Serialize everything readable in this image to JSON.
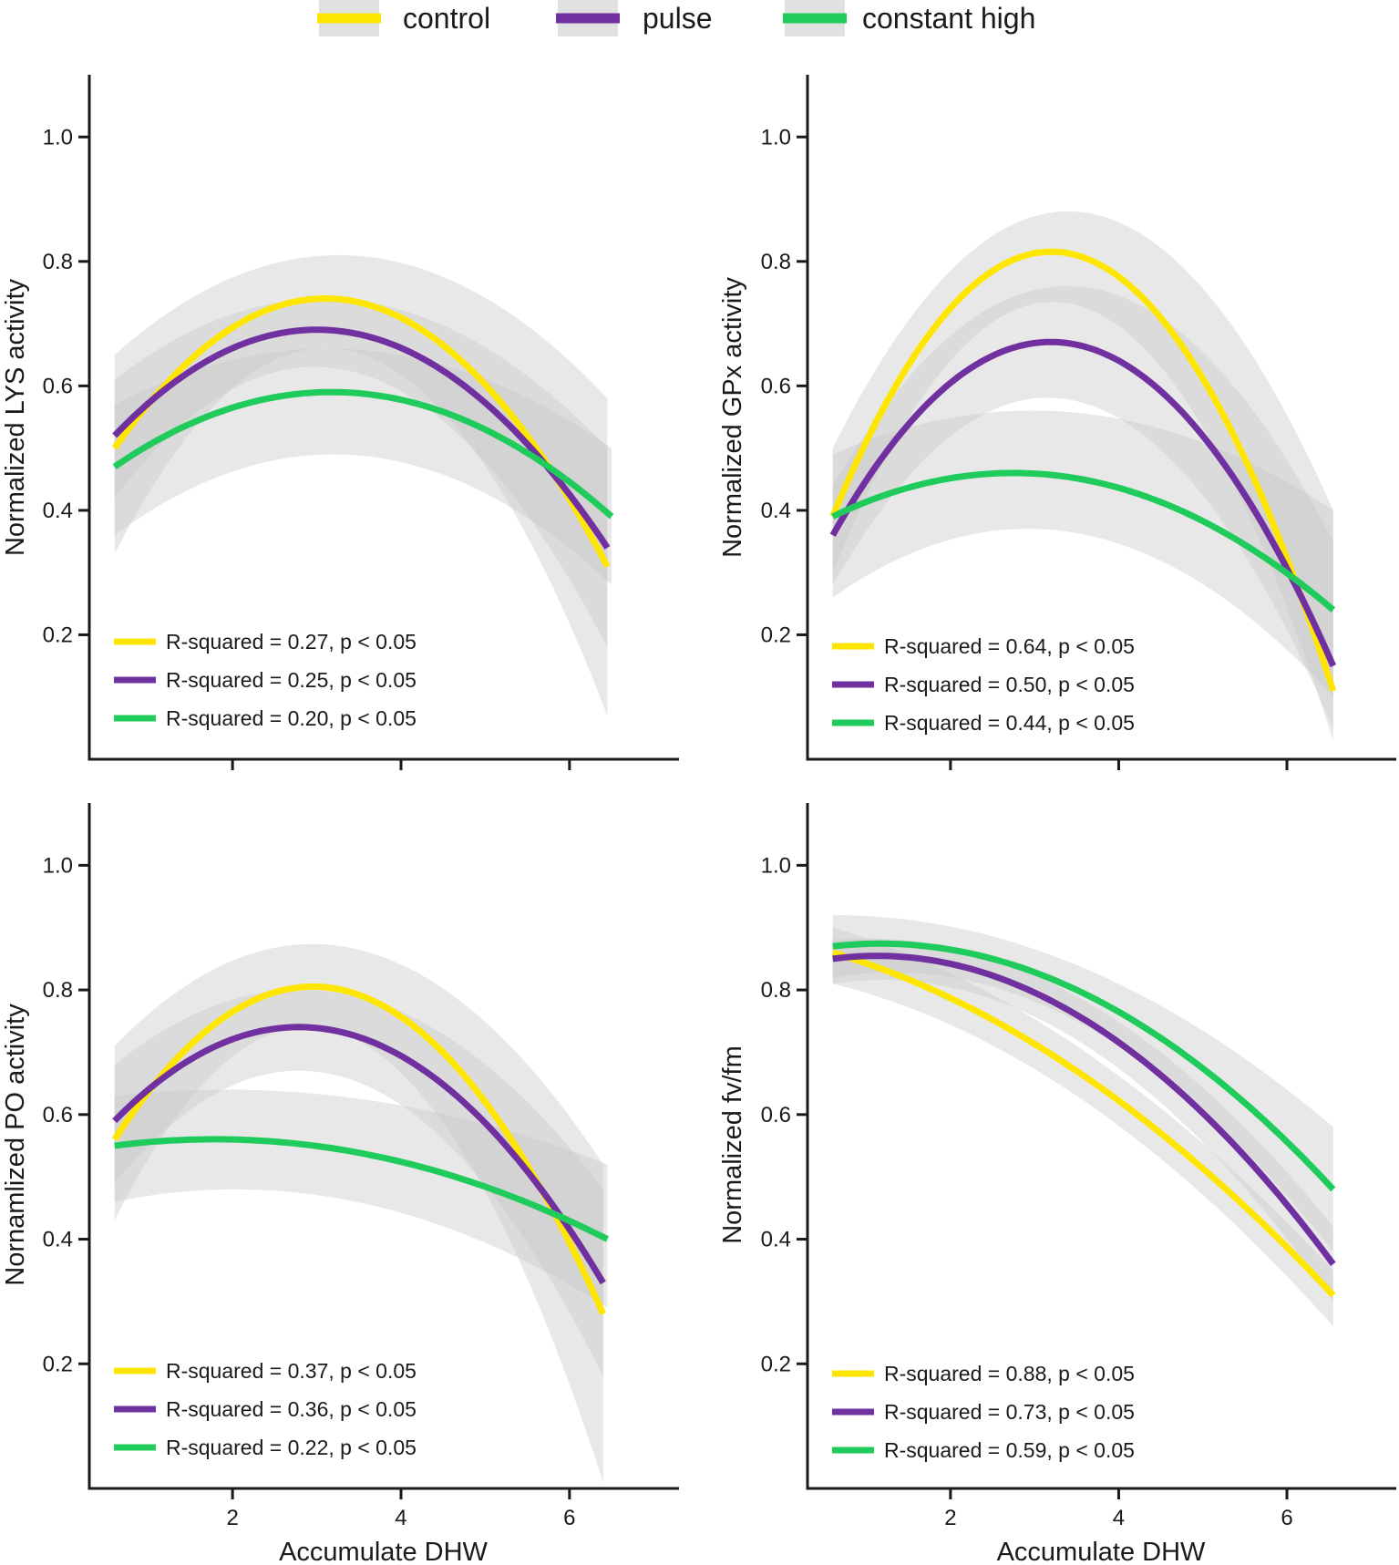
{
  "colors": {
    "control": "#FFE600",
    "pulse": "#7030A0",
    "constant_high": "#1FCB5A",
    "band": "#C8C8C8",
    "axis": "#1a1a1a"
  },
  "legend": [
    {
      "key": "control",
      "label": "control"
    },
    {
      "key": "pulse",
      "label": "pulse"
    },
    {
      "key": "constant_high",
      "label": "constant high"
    }
  ],
  "chart_data": [
    {
      "type": "line",
      "id": "lys",
      "ylabel": "Normalized LYS activity",
      "xlabel": "",
      "show_x_tick_labels": false,
      "xlim": [
        0.3,
        7.3
      ],
      "ylim": [
        0.0,
        1.1
      ],
      "xticks": [
        2,
        4,
        6
      ],
      "yticks": [
        0.2,
        0.4,
        0.6,
        0.8,
        1.0
      ],
      "ytick_labels": [
        "0.2",
        "0.4",
        "0.6",
        "0.8",
        "1.0"
      ],
      "series": [
        {
          "key": "control",
          "x": [
            0.6,
            3.2,
            6.45
          ],
          "y": [
            0.5,
            0.74,
            0.31
          ],
          "band_x": [
            0.6,
            3.2,
            6.45
          ],
          "band_upper": [
            0.65,
            0.81,
            0.58
          ],
          "band_lower": [
            0.33,
            0.66,
            0.07
          ],
          "stat": "R-squared = 0.27, p < 0.05"
        },
        {
          "key": "pulse",
          "x": [
            0.6,
            3.1,
            6.45
          ],
          "y": [
            0.52,
            0.69,
            0.34
          ],
          "band_x": [
            0.6,
            3.1,
            6.45
          ],
          "band_upper": [
            0.61,
            0.74,
            0.5
          ],
          "band_lower": [
            0.42,
            0.63,
            0.18
          ],
          "stat": "R-squared = 0.25, p < 0.05"
        },
        {
          "key": "constant_high",
          "x": [
            0.6,
            3.2,
            6.5
          ],
          "y": [
            0.47,
            0.59,
            0.39
          ],
          "band_x": [
            0.6,
            3.2,
            6.5
          ],
          "band_upper": [
            0.57,
            0.66,
            0.5
          ],
          "band_lower": [
            0.36,
            0.49,
            0.28
          ],
          "stat": "R-squared = 0.20, p < 0.05"
        }
      ]
    },
    {
      "type": "line",
      "id": "gpx",
      "ylabel": "Normalized GPx activity",
      "xlabel": "",
      "show_x_tick_labels": false,
      "xlim": [
        0.3,
        7.3
      ],
      "ylim": [
        0.0,
        1.1
      ],
      "xticks": [
        2,
        4,
        6
      ],
      "yticks": [
        0.2,
        0.4,
        0.6,
        0.8,
        1.0
      ],
      "ytick_labels": [
        "0.2",
        "0.4",
        "0.6",
        "0.8",
        "1.0"
      ],
      "series": [
        {
          "key": "control",
          "x": [
            0.6,
            3.5,
            6.55
          ],
          "y": [
            0.39,
            0.81,
            0.11
          ],
          "band_x": [
            0.6,
            3.5,
            6.55
          ],
          "band_upper": [
            0.5,
            0.88,
            0.4
          ],
          "band_lower": [
            0.3,
            0.73,
            0.03
          ],
          "stat": "R-squared = 0.64, p < 0.05"
        },
        {
          "key": "pulse",
          "x": [
            0.6,
            3.3,
            6.55
          ],
          "y": [
            0.36,
            0.67,
            0.15
          ],
          "band_x": [
            0.6,
            3.3,
            6.55
          ],
          "band_upper": [
            0.44,
            0.76,
            0.35
          ],
          "band_lower": [
            0.28,
            0.58,
            0.05
          ],
          "stat": "R-squared = 0.50, p < 0.05"
        },
        {
          "key": "constant_high",
          "x": [
            0.6,
            2.8,
            6.55
          ],
          "y": [
            0.39,
            0.46,
            0.24
          ],
          "band_x": [
            0.6,
            2.8,
            6.55
          ],
          "band_upper": [
            0.49,
            0.56,
            0.4
          ],
          "band_lower": [
            0.26,
            0.37,
            0.1
          ],
          "stat": "R-squared = 0.44, p < 0.05"
        }
      ]
    },
    {
      "type": "line",
      "id": "po",
      "ylabel": "Nornamlized PO activity",
      "xlabel": "Accumulate DHW",
      "show_x_tick_labels": true,
      "xlim": [
        0.3,
        7.3
      ],
      "ylim": [
        0.0,
        1.1
      ],
      "xticks": [
        2,
        4,
        6
      ],
      "xtick_labels": [
        "2",
        "4",
        "6"
      ],
      "yticks": [
        0.2,
        0.4,
        0.6,
        0.8,
        1.0
      ],
      "ytick_labels": [
        "0.2",
        "0.4",
        "0.6",
        "0.8",
        "1.0"
      ],
      "series": [
        {
          "key": "control",
          "x": [
            0.6,
            3.3,
            6.4
          ],
          "y": [
            0.56,
            0.8,
            0.28
          ],
          "band_x": [
            0.6,
            3.3,
            6.4
          ],
          "band_upper": [
            0.71,
            0.87,
            0.52
          ],
          "band_lower": [
            0.43,
            0.73,
            0.01
          ],
          "stat": "R-squared = 0.37, p < 0.05"
        },
        {
          "key": "pulse",
          "x": [
            0.6,
            2.9,
            6.4
          ],
          "y": [
            0.59,
            0.74,
            0.33
          ],
          "band_x": [
            0.6,
            2.9,
            6.4
          ],
          "band_upper": [
            0.68,
            0.8,
            0.48
          ],
          "band_lower": [
            0.49,
            0.67,
            0.18
          ],
          "stat": "R-squared = 0.36, p < 0.05"
        },
        {
          "key": "constant_high",
          "x": [
            0.6,
            2.0,
            6.45
          ],
          "y": [
            0.55,
            0.56,
            0.4
          ],
          "band_x": [
            0.6,
            2.0,
            6.45
          ],
          "band_upper": [
            0.63,
            0.64,
            0.52
          ],
          "band_lower": [
            0.46,
            0.48,
            0.29
          ],
          "stat": "R-squared = 0.22, p < 0.05"
        }
      ]
    },
    {
      "type": "line",
      "id": "fvfm",
      "ylabel": "Normalized fv/fm",
      "xlabel": "Accumulate DHW",
      "show_x_tick_labels": true,
      "xlim": [
        0.3,
        7.3
      ],
      "ylim": [
        0.0,
        1.1
      ],
      "xticks": [
        2,
        4,
        6
      ],
      "xtick_labels": [
        "2",
        "4",
        "6"
      ],
      "yticks": [
        0.2,
        0.4,
        0.6,
        0.8,
        1.0
      ],
      "ytick_labels": [
        "0.2",
        "0.4",
        "0.6",
        "0.8",
        "1.0"
      ],
      "series": [
        {
          "key": "control",
          "x": [
            0.6,
            3.5,
            6.55
          ],
          "y": [
            0.86,
            0.67,
            0.31
          ],
          "band_x": [
            0.6,
            3.5,
            6.55
          ],
          "band_upper": [
            0.9,
            0.71,
            0.35
          ],
          "band_lower": [
            0.81,
            0.63,
            0.26
          ],
          "stat": "R-squared = 0.88, p < 0.05"
        },
        {
          "key": "pulse",
          "x": [
            0.6,
            3.5,
            6.55
          ],
          "y": [
            0.85,
            0.76,
            0.36
          ],
          "band_x": [
            0.6,
            3.5,
            6.55
          ],
          "band_upper": [
            0.88,
            0.79,
            0.42
          ],
          "band_lower": [
            0.81,
            0.72,
            0.3
          ],
          "stat": "R-squared = 0.73, p < 0.05"
        },
        {
          "key": "constant_high",
          "x": [
            0.6,
            3.5,
            6.55
          ],
          "y": [
            0.87,
            0.8,
            0.48
          ],
          "band_x": [
            0.6,
            3.5,
            6.55
          ],
          "band_upper": [
            0.92,
            0.84,
            0.58
          ],
          "band_lower": [
            0.82,
            0.75,
            0.38
          ],
          "stat": "R-squared = 0.59, p < 0.05"
        }
      ]
    }
  ]
}
